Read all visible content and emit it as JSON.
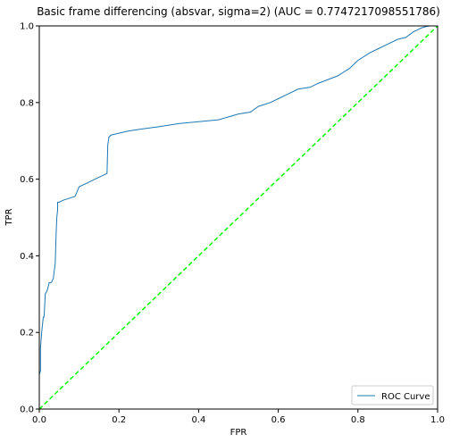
{
  "chart_data": {
    "type": "line",
    "title": "Basic frame differencing (absvar, sigma=2) (AUC = 0.7747217098551786)",
    "xlabel": "FPR",
    "ylabel": "TPR",
    "xlim": [
      0.0,
      1.0
    ],
    "ylim": [
      0.0,
      1.0
    ],
    "xticks": [
      "0.0",
      "0.2",
      "0.4",
      "0.6",
      "0.8",
      "1.0"
    ],
    "yticks": [
      "0.0",
      "0.2",
      "0.4",
      "0.6",
      "0.8",
      "1.0"
    ],
    "grid": false,
    "legend_position": "lower-right",
    "colors": {
      "roc": "#1f77b4",
      "chance": "#00ff00"
    },
    "series": [
      {
        "name": "ROC Curve",
        "style": "solid",
        "x": [
          0.0,
          0.0,
          0.003,
          0.003,
          0.006,
          0.008,
          0.01,
          0.012,
          0.015,
          0.015,
          0.02,
          0.025,
          0.03,
          0.035,
          0.04,
          0.042,
          0.044,
          0.046,
          0.046,
          0.05,
          0.06,
          0.075,
          0.09,
          0.1,
          0.12,
          0.14,
          0.16,
          0.17,
          0.172,
          0.175,
          0.18,
          0.2,
          0.22,
          0.25,
          0.3,
          0.35,
          0.4,
          0.45,
          0.5,
          0.53,
          0.55,
          0.58,
          0.6,
          0.63,
          0.65,
          0.68,
          0.7,
          0.75,
          0.78,
          0.8,
          0.83,
          0.85,
          0.88,
          0.9,
          0.92,
          0.94,
          0.95,
          0.96,
          0.97,
          0.98,
          0.99,
          1.0
        ],
        "y": [
          0.0,
          0.09,
          0.1,
          0.16,
          0.2,
          0.22,
          0.24,
          0.24,
          0.3,
          0.3,
          0.31,
          0.33,
          0.33,
          0.34,
          0.38,
          0.45,
          0.5,
          0.52,
          0.54,
          0.54,
          0.545,
          0.55,
          0.555,
          0.58,
          0.59,
          0.6,
          0.61,
          0.615,
          0.69,
          0.71,
          0.715,
          0.72,
          0.725,
          0.73,
          0.737,
          0.745,
          0.75,
          0.755,
          0.77,
          0.775,
          0.79,
          0.8,
          0.81,
          0.825,
          0.835,
          0.84,
          0.85,
          0.87,
          0.89,
          0.91,
          0.93,
          0.94,
          0.955,
          0.965,
          0.97,
          0.985,
          0.99,
          0.995,
          0.998,
          1.0,
          1.0,
          1.0
        ]
      },
      {
        "name": "",
        "style": "dashed",
        "x": [
          0.0,
          1.0
        ],
        "y": [
          0.0,
          1.0
        ]
      }
    ]
  }
}
